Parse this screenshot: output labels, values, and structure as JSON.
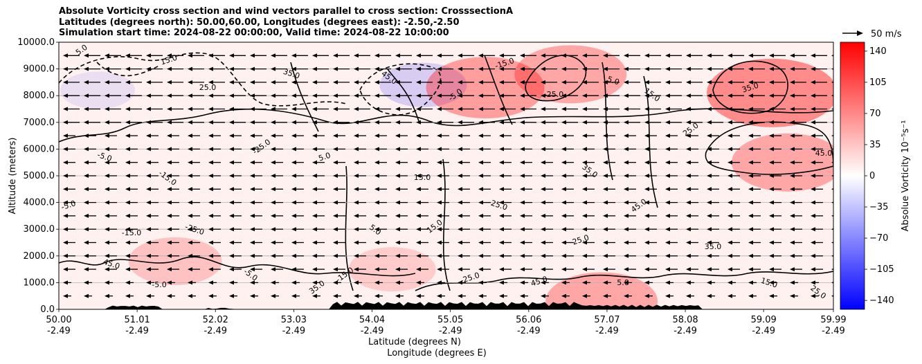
{
  "chart_data": {
    "type": "heatmap",
    "title_lines": [
      "Absolute Vorticity cross section and wind vectors parallel to cross section: CrosssectionA",
      "Latitudes (degrees north): 50.00,60.00, Longitudes (degrees east): -2.50,-2.50",
      "Simulation start time: 2024-08-22 00:00:00, Valid time: 2024-08-22 10:00:00"
    ],
    "ylabel": "Altitude (meters)",
    "xlabel_lines": [
      "Latitude (degrees N)",
      "Longitude (degrees E)"
    ],
    "ylim": [
      0,
      10000
    ],
    "xlim": [
      50.0,
      59.99
    ],
    "y_ticks": [
      "0.0",
      "1000.0",
      "2000.0",
      "3000.0",
      "4000.0",
      "5000.0",
      "6000.0",
      "7000.0",
      "8000.0",
      "9000.0",
      "10000.0"
    ],
    "x_ticks": [
      {
        "lat": "50.00",
        "lon": "-2.49"
      },
      {
        "lat": "51.01",
        "lon": "-2.49"
      },
      {
        "lat": "52.02",
        "lon": "-2.49"
      },
      {
        "lat": "53.03",
        "lon": "-2.49"
      },
      {
        "lat": "54.04",
        "lon": "-2.49"
      },
      {
        "lat": "55.05",
        "lon": "-2.49"
      },
      {
        "lat": "56.06",
        "lon": "-2.49"
      },
      {
        "lat": "57.07",
        "lon": "-2.49"
      },
      {
        "lat": "58.08",
        "lon": "-2.49"
      },
      {
        "lat": "59.09",
        "lon": "-2.49"
      },
      {
        "lat": "59.99",
        "lon": "-2.49"
      }
    ],
    "grid": "horizontal",
    "colorbar": {
      "label": "Absolue Vorticity 10⁻⁵s⁻¹",
      "range": [
        -150,
        150
      ],
      "ticks": [
        "140",
        "105",
        "70",
        "35",
        "0",
        "−35",
        "−70",
        "−105",
        "−140"
      ],
      "colormap": "bwr"
    },
    "quiver_key": {
      "label": "50 m/s",
      "value": 50
    },
    "wind_direction": "toward lower latitude",
    "contour_labels": [
      "5.0",
      "15.0",
      "25.0",
      "35.0",
      "45.0",
      "-5.0",
      "-15.0",
      "-25.0"
    ],
    "vorticity_features": [
      {
        "lat": 50.5,
        "alt": 8200,
        "value": -10
      },
      {
        "lat": 54.7,
        "alt": 8400,
        "value": -20
      },
      {
        "lat": 55.5,
        "alt": 8300,
        "value": 45
      },
      {
        "lat": 56.6,
        "alt": 8800,
        "value": 40
      },
      {
        "lat": 59.2,
        "alt": 8100,
        "value": 55
      },
      {
        "lat": 59.4,
        "alt": 5500,
        "value": 40
      },
      {
        "lat": 51.5,
        "alt": 1800,
        "value": 25
      },
      {
        "lat": 54.3,
        "alt": 1500,
        "value": 20
      },
      {
        "lat": 57.0,
        "alt": 300,
        "value": 40
      }
    ]
  },
  "colors": {
    "positive": "#ff0000",
    "negative": "#0000ff",
    "neutral": "#ffffff",
    "contour": "#000000",
    "terrain": "#000000"
  }
}
